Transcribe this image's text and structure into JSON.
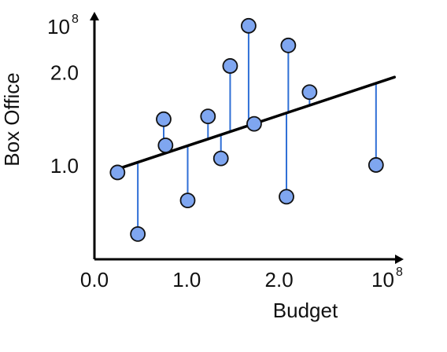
{
  "chart_data": {
    "type": "scatter",
    "title": "",
    "xlabel": "Budget",
    "ylabel": "Box Office",
    "x_ticks": [
      {
        "value": 0.0,
        "label": "0.0"
      },
      {
        "value": 1.0,
        "label": "1.0"
      },
      {
        "value": 2.0,
        "label": "2.0"
      }
    ],
    "y_ticks": [
      {
        "value": 1.0,
        "label": "1.0"
      },
      {
        "value": 2.0,
        "label": "2.0"
      }
    ],
    "x_exponent": {
      "base": "10",
      "exp": "8"
    },
    "y_exponent": {
      "base": "10",
      "exp": "8"
    },
    "xlim": [
      0,
      3.35
    ],
    "ylim": [
      0,
      2.65
    ],
    "grid": false,
    "regression_line": {
      "x": [
        0.2,
        3.25
      ],
      "y": [
        0.95,
        1.95
      ]
    },
    "points": [
      {
        "x": 0.25,
        "y": 0.93
      },
      {
        "x": 0.47,
        "y": 0.27
      },
      {
        "x": 0.75,
        "y": 1.5
      },
      {
        "x": 0.77,
        "y": 1.22
      },
      {
        "x": 1.01,
        "y": 0.63
      },
      {
        "x": 1.23,
        "y": 1.53
      },
      {
        "x": 1.37,
        "y": 1.08
      },
      {
        "x": 1.47,
        "y": 2.07
      },
      {
        "x": 1.67,
        "y": 2.5
      },
      {
        "x": 1.73,
        "y": 1.45
      },
      {
        "x": 2.08,
        "y": 0.67
      },
      {
        "x": 2.1,
        "y": 2.29
      },
      {
        "x": 2.33,
        "y": 1.79
      },
      {
        "x": 3.05,
        "y": 1.01
      }
    ],
    "colors": {
      "point_fill": "#7fa6f0",
      "point_stroke": "#111111",
      "residual": "#2f6fd6",
      "line": "#000000",
      "axis": "#000000"
    }
  }
}
